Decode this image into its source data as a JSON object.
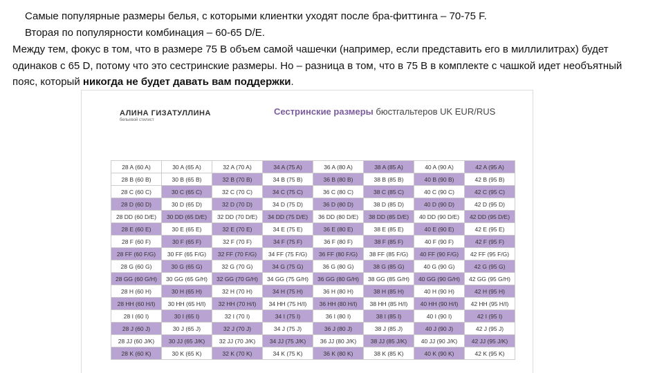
{
  "text": {
    "line1": "Самые популярные размеры белья, с которыми клиентки уходят после бра-фиттинга – 70-75 F.",
    "line2": "Вторая по популярности комбинация – 60-65 D/E.",
    "paragraph": "Между тем, фокус в том, что в размере 75 B объем самой чашечки (например, если представить его в миллилитрах) будет одинаков с 65 D, потому что это сестринские размеры. Но – разница в том, что в 75 B в комплекте с чашкой идет необъятный пояс, который",
    "paragraph_bold": "никогда не будет давать вам поддержки",
    "paragraph_end": "."
  },
  "image": {
    "logo": "АЛИНА ГИЗАТУЛЛИНА",
    "logo_sub": "бельевой стилист",
    "title_main": "Сестринские размеры",
    "title_sub": "бюстгальтеров UK EUR/RUS"
  },
  "table": {
    "rows": [
      [
        "28 A (60 A)",
        "30 A (65 A)",
        "32 A (70 A)",
        "34 A (75 A)",
        "36 A (80 A)",
        "38 A (85 A)",
        "40 A (90 A)",
        "42 A (95 A)"
      ],
      [
        "28 B (60 B)",
        "30 B (65 B)",
        "32 B (70 B)",
        "34 B (75 B)",
        "36 B (80 B)",
        "38 B (85 B)",
        "40 B (90 B)",
        "42 B (95 B)"
      ],
      [
        "28 C (60 C)",
        "30 C (65 C)",
        "32 C (70 C)",
        "34 C (75 C)",
        "36 C (80 C)",
        "38 C (85 C)",
        "40 C (90 C)",
        "42 C (95 C)"
      ],
      [
        "28 D (60 D)",
        "30 D (65 D)",
        "32 D (70 D)",
        "34 D (75 D)",
        "36 D (80 D)",
        "38 D (85 D)",
        "40 D (90 D)",
        "42 D (95 D)"
      ],
      [
        "28 DD (60 D/E)",
        "30 DD (65 D/E)",
        "32 DD (70 D/E)",
        "34 DD (75 D/E)",
        "36 DD (80 D/E)",
        "38 DD (85 D/E)",
        "40 DD (90 D/E)",
        "42 DD (95 D/E)"
      ],
      [
        "28 E (60 E)",
        "30 E (65 E)",
        "32 E (70 E)",
        "34 E (75 E)",
        "36 E (80 E)",
        "38 E (85 E)",
        "40 E (90 E)",
        "42 E (95 E)"
      ],
      [
        "28 F (60 F)",
        "30 F (65 F)",
        "32 F (70 F)",
        "34 F (75 F)",
        "36 F (80 F)",
        "38 F (85 F)",
        "40 F (90 F)",
        "42 F (95 F)"
      ],
      [
        "28 FF (60 F/G)",
        "30 FF (65 F/G)",
        "32 FF (70 F/G)",
        "34 FF (75 F/G)",
        "36 FF (80 F/G)",
        "38 FF (85 F/G)",
        "40 FF (90 F/G)",
        "42 FF (95 F/G)"
      ],
      [
        "28 G (60 G)",
        "30 G (65 G)",
        "32 G (70 G)",
        "34 G (75 G)",
        "36 G (80 G)",
        "38 G (85 G)",
        "40 G (90 G)",
        "42 G (95 G)"
      ],
      [
        "28 GG (60 G/H)",
        "30 GG (65 G/H)",
        "32 GG (70 G/H)",
        "34 GG (75 G/H)",
        "36 GG (80 G/H)",
        "38 GG (85 G/H)",
        "40 GG (90 G/H)",
        "42 GG (95 G/H)"
      ],
      [
        "28 H (60 H)",
        "30 H (65 H)",
        "32 H (70 H)",
        "34 H (75 H)",
        "36 H (80 H)",
        "38 H (85 H)",
        "40 H (90 H)",
        "42 H (95 H)"
      ],
      [
        "28 HH (60 H/I)",
        "30 HH (65 H/I)",
        "32 HH (70 H/I)",
        "34 HH (75 H/I)",
        "36 HH (80 H/I)",
        "38 HH (85 H/I)",
        "40 HH (90 H/I)",
        "42 HH (95 H/I)"
      ],
      [
        "28 I (60 I)",
        "30 I (65 I)",
        "32 I (70 I)",
        "34 I (75 I)",
        "36 I (80 I)",
        "38 I (85 I)",
        "40 I (90 I)",
        "42 I (95 I)"
      ],
      [
        "28 J (60 J)",
        "30 J (65 J)",
        "32 J (70 J)",
        "34 J (75 J)",
        "36 J (80 J)",
        "38 J (85 J)",
        "40 J (90 J)",
        "42 J (95 J)"
      ],
      [
        "28 JJ (60 J/K)",
        "30 JJ (65 J/K)",
        "32 JJ (70 J/K)",
        "34 JJ (75 J/K)",
        "36 JJ (80 J/K)",
        "38 JJ (85 J/K)",
        "40 JJ (90 J/K)",
        "42 JJ (95 J/K)"
      ],
      [
        "28 K (60 K)",
        "30 K (65 K)",
        "32 K (70 K)",
        "34 K (75 K)",
        "36 K (80 K)",
        "38 K (85 K)",
        "40 K (90 K)",
        "42 K (95 K)"
      ]
    ]
  }
}
